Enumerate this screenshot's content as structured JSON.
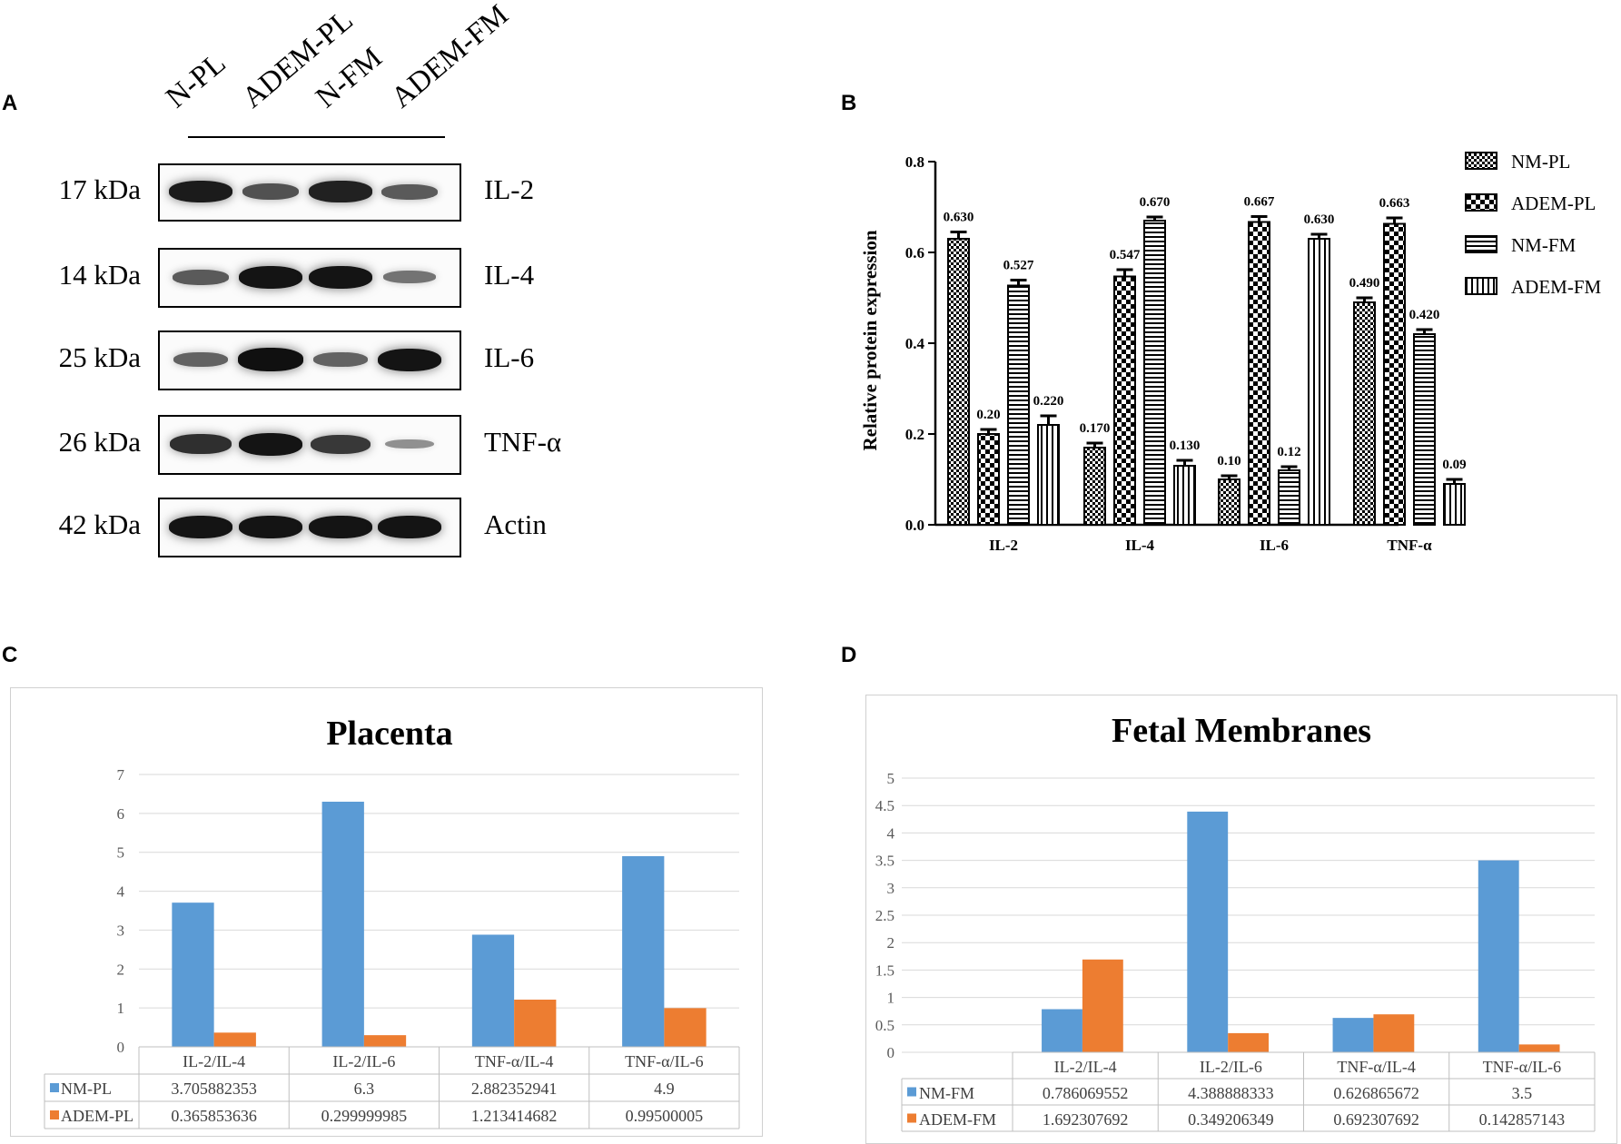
{
  "panels": {
    "a": "A",
    "b": "B",
    "c": "C",
    "d": "D"
  },
  "blot": {
    "lanes": [
      "N-PL",
      "ADEM-PL",
      "N-FM",
      "ADEM-FM"
    ],
    "rows": [
      {
        "kda": "17 kDa",
        "protein": "IL-2",
        "intensities": [
          0.9,
          0.6,
          0.88,
          0.55
        ]
      },
      {
        "kda": "14 kDa",
        "protein": "IL-4",
        "intensities": [
          0.55,
          0.95,
          0.95,
          0.4
        ]
      },
      {
        "kda": "25 kDa",
        "protein": "IL-6",
        "intensities": [
          0.5,
          0.97,
          0.5,
          0.95
        ]
      },
      {
        "kda": "26 kDa",
        "protein": "TNF-α",
        "intensities": [
          0.8,
          0.95,
          0.75,
          0.22
        ]
      },
      {
        "kda": "42 kDa",
        "protein": "Actin",
        "intensities": [
          0.95,
          0.95,
          0.95,
          0.95
        ]
      }
    ]
  },
  "chart_data": [
    {
      "type": "bar",
      "title": "",
      "ylabel": "Relative protein expression",
      "xlabel": "",
      "ylim": [
        0,
        0.8
      ],
      "yticks": [
        "0.0",
        "0.2",
        "0.4",
        "0.6",
        "0.8"
      ],
      "categories": [
        "IL-2",
        "IL-4",
        "IL-6",
        "TNF-α"
      ],
      "series": [
        {
          "name": "NM-PL",
          "pattern": "checker",
          "values": [
            0.63,
            0.17,
            0.1,
            0.49
          ],
          "errors": [
            0.015,
            0.01,
            0.008,
            0.01
          ],
          "labels": [
            "0.630",
            "0.170",
            "0.10",
            "0.490"
          ]
        },
        {
          "name": "ADEM-PL",
          "pattern": "bigchecker",
          "values": [
            0.2,
            0.547,
            0.667,
            0.663
          ],
          "errors": [
            0.01,
            0.015,
            0.012,
            0.013
          ],
          "labels": [
            "0.20",
            "0.547",
            "0.667",
            "0.663"
          ]
        },
        {
          "name": "NM-FM",
          "pattern": "hstripe",
          "values": [
            0.527,
            0.67,
            0.12,
            0.42
          ],
          "errors": [
            0.012,
            0.008,
            0.008,
            0.01
          ],
          "labels": [
            "0.527",
            "0.670",
            "0.12",
            "0.420"
          ]
        },
        {
          "name": "ADEM-FM",
          "pattern": "vstripe",
          "values": [
            0.22,
            0.13,
            0.63,
            0.09
          ],
          "errors": [
            0.02,
            0.012,
            0.01,
            0.01
          ],
          "labels": [
            "0.220",
            "0.130",
            "0.630",
            "0.09"
          ]
        }
      ],
      "legend": "right"
    },
    {
      "type": "bar",
      "title": "Placenta",
      "ylim": [
        0,
        7
      ],
      "yticks": [
        "0",
        "1",
        "2",
        "3",
        "4",
        "5",
        "6",
        "7"
      ],
      "categories": [
        "IL-2/IL-4",
        "IL-2/IL-6",
        "TNF-α/IL-4",
        "TNF-α/IL-6"
      ],
      "series": [
        {
          "name": "NM-PL",
          "color": "#5b9bd5",
          "values": [
            3.705882353,
            6.3,
            2.882352941,
            4.9
          ],
          "labels": [
            "3.705882353",
            "6.3",
            "2.882352941",
            "4.9"
          ]
        },
        {
          "name": "ADEM-PL",
          "color": "#ed7d31",
          "values": [
            0.365853636,
            0.299999985,
            1.213414682,
            0.99500005
          ],
          "labels": [
            "0.365853636",
            "0.299999985",
            "1.213414682",
            "0.99500005"
          ]
        }
      ],
      "data_table": true
    },
    {
      "type": "bar",
      "title": "Fetal Membranes",
      "ylim": [
        0,
        5
      ],
      "yticks": [
        "0",
        "0.5",
        "1",
        "1.5",
        "2",
        "2.5",
        "3",
        "3.5",
        "4",
        "4.5",
        "5"
      ],
      "categories": [
        "IL-2/IL-4",
        "IL-2/IL-6",
        "TNF-α/IL-4",
        "TNF-α/IL-6"
      ],
      "series": [
        {
          "name": "NM-FM",
          "color": "#5b9bd5",
          "values": [
            0.786069552,
            4.388888333,
            0.626865672,
            3.5
          ],
          "labels": [
            "0.786069552",
            "4.388888333",
            "0.626865672",
            "3.5"
          ]
        },
        {
          "name": "ADEM-FM",
          "color": "#ed7d31",
          "values": [
            1.692307692,
            0.349206349,
            0.692307692,
            0.142857143
          ],
          "labels": [
            "1.692307692",
            "0.349206349",
            "0.692307692",
            "0.142857143"
          ]
        }
      ],
      "data_table": true
    }
  ]
}
